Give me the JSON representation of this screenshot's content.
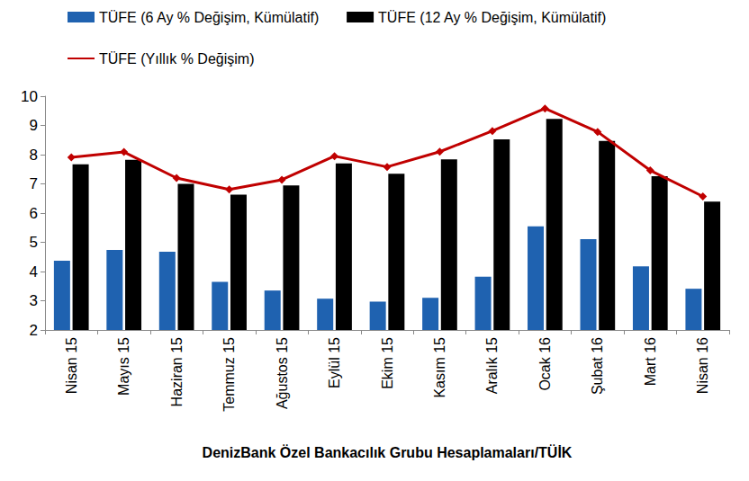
{
  "chart_data": {
    "type": "bar",
    "xlabel": "DenizBank Özel Bankacılık Grubu Hesaplamaları/TÜİK",
    "categories": [
      "Nisan 15",
      "Mayıs 15",
      "Haziran 15",
      "Temmuz 15",
      "Ağustos 15",
      "Eylül 15",
      "Ekim 15",
      "Kasım 15",
      "Aralık 15",
      "Ocak 16",
      "Şubat 16",
      "Mart 16",
      "Nisan 16"
    ],
    "series": [
      {
        "name": "TÜFE (6 Ay % Değişim, Kümülatif)",
        "type": "bar",
        "color": "#1f62b0",
        "values": [
          4.37,
          4.74,
          4.68,
          3.65,
          3.35,
          3.07,
          2.97,
          3.1,
          3.82,
          5.55,
          5.11,
          4.18,
          3.41
        ]
      },
      {
        "name": "TÜFE (12 Ay % Değişim, Kümülatif)",
        "type": "bar",
        "color": "#000000",
        "values": [
          7.67,
          7.82,
          7.0,
          6.63,
          6.95,
          7.7,
          7.35,
          7.84,
          8.52,
          9.22,
          8.47,
          7.26,
          6.39
        ]
      },
      {
        "name": "TÜFE (Yıllık % Değişim)",
        "type": "line",
        "color": "#c00000",
        "marker": "diamond",
        "line_style": "solid",
        "values": [
          7.91,
          8.09,
          7.2,
          6.81,
          7.14,
          7.95,
          7.58,
          8.1,
          8.81,
          9.58,
          8.78,
          7.46,
          6.57
        ]
      }
    ],
    "ylim": [
      2,
      10
    ],
    "yticks": [
      2,
      3,
      4,
      5,
      6,
      7,
      8,
      9,
      10
    ],
    "grid": false,
    "legend": "top"
  }
}
